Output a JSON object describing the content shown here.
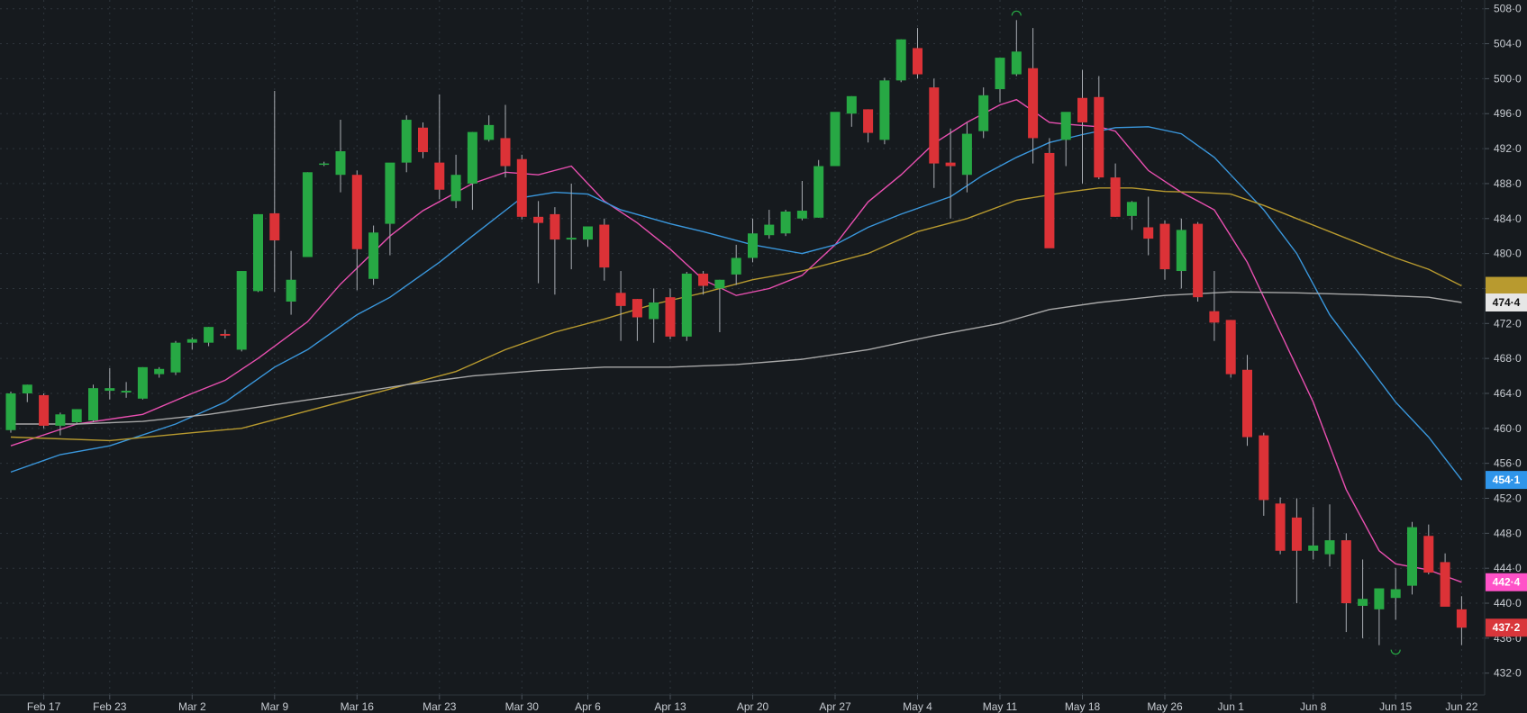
{
  "colors": {
    "background": "#161a1e",
    "grid": "#2e353c",
    "up": "#27a844",
    "down": "#dc3237",
    "wick": "#a9adb3",
    "ma_fast": "#e84fb0",
    "ma_mid": "#3a97dc",
    "ma_slow": "#b89a2f",
    "ma_long": "#a8a8a8",
    "text": "#c8ccd2"
  },
  "chart_data": {
    "type": "candlestick",
    "ylim": [
      429.5,
      509.0
    ],
    "y_ticks": [
      "432·0",
      "436·0",
      "440·0",
      "444·0",
      "448·0",
      "452·0",
      "456·0",
      "460·0",
      "464·0",
      "468·0",
      "472·0",
      "476·0",
      "480·0",
      "484·0",
      "488·0",
      "492·0",
      "496·0",
      "500·0",
      "504·0",
      "508·0"
    ],
    "x_ticks": [
      {
        "label": "Feb 17",
        "index": 2
      },
      {
        "label": "Feb 23",
        "index": 6
      },
      {
        "label": "Mar 2",
        "index": 11
      },
      {
        "label": "Mar 9",
        "index": 16
      },
      {
        "label": "Mar 16",
        "index": 21
      },
      {
        "label": "Mar 23",
        "index": 26
      },
      {
        "label": "Mar 30",
        "index": 31
      },
      {
        "label": "Apr 6",
        "index": 35
      },
      {
        "label": "Apr 13",
        "index": 40
      },
      {
        "label": "Apr 20",
        "index": 45
      },
      {
        "label": "Apr 27",
        "index": 50
      },
      {
        "label": "May 4",
        "index": 55
      },
      {
        "label": "May 11",
        "index": 60
      },
      {
        "label": "May 18",
        "index": 65
      },
      {
        "label": "May 26",
        "index": 70
      },
      {
        "label": "Jun 1",
        "index": 74
      },
      {
        "label": "Jun 8",
        "index": 79
      },
      {
        "label": "Jun 15",
        "index": 84
      },
      {
        "label": "Jun 22",
        "index": 88
      }
    ],
    "candles": [
      [
        459.8,
        464.2,
        459.5,
        464.0
      ],
      [
        464.0,
        465.0,
        463.0,
        465.0
      ],
      [
        463.8,
        464.0,
        460.0,
        460.3
      ],
      [
        460.3,
        461.8,
        459.2,
        461.6
      ],
      [
        460.7,
        462.2,
        460.5,
        462.2
      ],
      [
        460.9,
        465.0,
        460.7,
        464.6
      ],
      [
        464.3,
        466.9,
        463.3,
        464.6
      ],
      [
        464.1,
        465.3,
        463.5,
        464.3
      ],
      [
        463.4,
        467.0,
        463.3,
        467.0
      ],
      [
        466.2,
        467.0,
        465.8,
        466.8
      ],
      [
        466.4,
        470.0,
        466.1,
        469.8
      ],
      [
        469.8,
        470.4,
        469.0,
        470.2
      ],
      [
        469.8,
        471.6,
        469.4,
        471.6
      ],
      [
        470.8,
        471.3,
        470.3,
        470.6
      ],
      [
        469.0,
        478.0,
        468.8,
        478.0
      ],
      [
        475.7,
        484.5,
        475.6,
        484.5
      ],
      [
        484.6,
        498.6,
        475.6,
        481.5
      ],
      [
        474.5,
        480.3,
        473.0,
        477.0
      ],
      [
        479.6,
        489.3,
        479.6,
        489.3
      ],
      [
        490.3,
        490.5,
        490.0,
        490.3
      ],
      [
        489.0,
        495.3,
        487.0,
        491.7
      ],
      [
        489.0,
        489.5,
        475.8,
        480.5
      ],
      [
        477.1,
        483.2,
        476.4,
        482.4
      ],
      [
        483.4,
        490.3,
        479.8,
        490.4
      ],
      [
        490.4,
        495.8,
        489.3,
        495.3
      ],
      [
        494.4,
        495.0,
        490.9,
        491.6
      ],
      [
        490.4,
        498.2,
        486.2,
        487.3
      ],
      [
        486.0,
        491.3,
        485.2,
        489.0
      ],
      [
        488.0,
        493.9,
        485.0,
        493.9
      ],
      [
        493.0,
        495.8,
        492.8,
        494.7
      ],
      [
        493.2,
        497.0,
        488.7,
        490.0
      ],
      [
        490.8,
        491.3,
        483.9,
        484.2
      ],
      [
        484.2,
        486.0,
        476.6,
        483.5
      ],
      [
        484.5,
        485.3,
        475.3,
        481.6
      ],
      [
        481.6,
        488.0,
        478.2,
        481.8
      ],
      [
        481.6,
        483.0,
        480.8,
        483.1
      ],
      [
        483.3,
        484.0,
        476.9,
        478.4
      ],
      [
        475.5,
        478.0,
        470.0,
        474.0
      ],
      [
        474.8,
        474.8,
        470.0,
        472.7
      ],
      [
        472.5,
        476.0,
        469.8,
        474.4
      ],
      [
        475.0,
        476.0,
        470.2,
        470.5
      ],
      [
        470.5,
        477.9,
        470.0,
        477.7
      ],
      [
        477.7,
        478.0,
        475.3,
        476.3
      ],
      [
        476.0,
        477.0,
        471.0,
        477.0
      ],
      [
        477.6,
        481.0,
        476.4,
        479.5
      ],
      [
        479.5,
        484.0,
        479.0,
        482.3
      ],
      [
        482.1,
        485.0,
        481.7,
        483.3
      ],
      [
        482.3,
        485.0,
        482.0,
        484.8
      ],
      [
        484.0,
        488.3,
        483.8,
        484.9
      ],
      [
        484.1,
        490.7,
        484.1,
        490.0
      ],
      [
        490.0,
        496.0,
        490.0,
        496.2
      ],
      [
        496.0,
        498.0,
        494.5,
        498.0
      ],
      [
        496.5,
        496.5,
        492.7,
        493.8
      ],
      [
        493.0,
        500.1,
        492.5,
        499.8
      ],
      [
        499.8,
        504.5,
        499.6,
        504.5
      ],
      [
        503.5,
        505.8,
        500.0,
        500.5
      ],
      [
        499.0,
        500.0,
        487.5,
        490.3
      ],
      [
        490.4,
        494.3,
        484.0,
        490.0
      ],
      [
        489.0,
        495.0,
        487.0,
        493.7
      ],
      [
        494.0,
        499.0,
        493.2,
        498.1
      ],
      [
        498.8,
        502.3,
        497.3,
        502.4
      ],
      [
        500.5,
        506.7,
        500.3,
        503.1
      ],
      [
        501.2,
        505.8,
        490.3,
        493.2
      ],
      [
        491.5,
        493.2,
        481.0,
        480.6
      ],
      [
        493.0,
        496.0,
        490.0,
        496.2
      ],
      [
        497.8,
        501.0,
        488.0,
        495.0
      ],
      [
        497.9,
        500.3,
        488.5,
        488.7
      ],
      [
        488.7,
        490.3,
        484.2,
        484.2
      ],
      [
        484.3,
        486.0,
        482.7,
        485.9
      ],
      [
        483.0,
        486.5,
        479.8,
        481.7
      ],
      [
        483.4,
        483.8,
        477.0,
        478.2
      ],
      [
        478.0,
        484.0,
        476.0,
        482.7
      ],
      [
        483.4,
        483.6,
        474.5,
        475.0
      ],
      [
        473.4,
        478.0,
        470.0,
        472.1
      ],
      [
        472.4,
        472.4,
        465.8,
        466.2
      ],
      [
        466.7,
        468.4,
        458.0,
        459.0
      ],
      [
        459.2,
        459.5,
        450.0,
        451.8
      ],
      [
        451.4,
        452.1,
        445.6,
        446.0
      ],
      [
        449.8,
        452.0,
        440.0,
        446.0
      ],
      [
        446.0,
        451.0,
        445.0,
        446.6
      ],
      [
        445.6,
        451.3,
        444.2,
        447.2
      ],
      [
        447.2,
        448.0,
        436.7,
        440.0
      ],
      [
        439.7,
        445.0,
        436.0,
        440.5
      ],
      [
        439.3,
        441.3,
        435.2,
        441.7
      ],
      [
        440.6,
        444.0,
        438.1,
        441.6
      ],
      [
        442.0,
        449.3,
        441.0,
        448.7
      ],
      [
        447.7,
        449.0,
        443.3,
        443.5
      ],
      [
        444.7,
        445.7,
        439.8,
        439.6
      ],
      [
        439.3,
        440.8,
        435.2,
        437.2
      ]
    ],
    "series": [
      {
        "key": "ma_fast",
        "values": [
          [
            0,
            458.0
          ],
          [
            4,
            460.5
          ],
          [
            8,
            461.6
          ],
          [
            11,
            464.0
          ],
          [
            13,
            465.5
          ],
          [
            15,
            468.0
          ],
          [
            18,
            472.2
          ],
          [
            20,
            476.5
          ],
          [
            23,
            482.0
          ],
          [
            25,
            484.9
          ],
          [
            28,
            488.0
          ],
          [
            30,
            489.3
          ],
          [
            32,
            489.0
          ],
          [
            34,
            490.0
          ],
          [
            36,
            486.0
          ],
          [
            38,
            483.5
          ],
          [
            40,
            480.5
          ],
          [
            42,
            477.0
          ],
          [
            44,
            475.2
          ],
          [
            46,
            476.0
          ],
          [
            48,
            477.5
          ],
          [
            50,
            481.0
          ],
          [
            52,
            485.9
          ],
          [
            54,
            489.0
          ],
          [
            56,
            492.6
          ],
          [
            58,
            495.0
          ],
          [
            60,
            497.0
          ],
          [
            61,
            497.6
          ],
          [
            63,
            495.0
          ],
          [
            64,
            494.8
          ],
          [
            66,
            494.5
          ],
          [
            67,
            494.0
          ],
          [
            69,
            489.5
          ],
          [
            71,
            487.0
          ],
          [
            72,
            486.0
          ],
          [
            73,
            485.0
          ],
          [
            75,
            479.0
          ],
          [
            77,
            471.0
          ],
          [
            79,
            463.0
          ],
          [
            81,
            453.0
          ],
          [
            83,
            446.0
          ],
          [
            84,
            444.5
          ],
          [
            86,
            443.8
          ],
          [
            88,
            442.4
          ]
        ]
      },
      {
        "key": "ma_mid",
        "values": [
          [
            0,
            455.0
          ],
          [
            3,
            457.0
          ],
          [
            6,
            458.0
          ],
          [
            10,
            460.5
          ],
          [
            13,
            463.0
          ],
          [
            16,
            467.0
          ],
          [
            18,
            469.0
          ],
          [
            21,
            473.0
          ],
          [
            23,
            475.0
          ],
          [
            26,
            479.0
          ],
          [
            28,
            482.0
          ],
          [
            31,
            486.4
          ],
          [
            33,
            487.0
          ],
          [
            35,
            486.8
          ],
          [
            37,
            485.0
          ],
          [
            40,
            483.4
          ],
          [
            42,
            482.5
          ],
          [
            45,
            481.0
          ],
          [
            48,
            480.0
          ],
          [
            50,
            481.0
          ],
          [
            52,
            483.0
          ],
          [
            54,
            484.5
          ],
          [
            57,
            486.5
          ],
          [
            59,
            489.0
          ],
          [
            61,
            491.0
          ],
          [
            63,
            492.7
          ],
          [
            65,
            493.6
          ],
          [
            67,
            494.4
          ],
          [
            69,
            494.5
          ],
          [
            71,
            493.7
          ],
          [
            73,
            491.0
          ],
          [
            74,
            489.0
          ],
          [
            76,
            485.0
          ],
          [
            78,
            480.0
          ],
          [
            80,
            473.0
          ],
          [
            82,
            468.0
          ],
          [
            84,
            463.0
          ],
          [
            86,
            459.0
          ],
          [
            88,
            454.1
          ]
        ]
      },
      {
        "key": "ma_slow",
        "values": [
          [
            0,
            459.0
          ],
          [
            6,
            458.6
          ],
          [
            11,
            459.5
          ],
          [
            14,
            460.0
          ],
          [
            17,
            461.5
          ],
          [
            21,
            463.5
          ],
          [
            24,
            465.0
          ],
          [
            27,
            466.5
          ],
          [
            30,
            469.0
          ],
          [
            33,
            471.0
          ],
          [
            36,
            472.5
          ],
          [
            39,
            474.2
          ],
          [
            42,
            475.5
          ],
          [
            45,
            477.0
          ],
          [
            48,
            478.0
          ],
          [
            50,
            479.0
          ],
          [
            52,
            480.0
          ],
          [
            55,
            482.5
          ],
          [
            58,
            484.0
          ],
          [
            61,
            486.1
          ],
          [
            64,
            487.0
          ],
          [
            66,
            487.5
          ],
          [
            68,
            487.5
          ],
          [
            70,
            487.1
          ],
          [
            72,
            487.0
          ],
          [
            74,
            486.8
          ],
          [
            76,
            485.5
          ],
          [
            78,
            484.0
          ],
          [
            80,
            482.5
          ],
          [
            82,
            481.0
          ],
          [
            84,
            479.5
          ],
          [
            86,
            478.2
          ],
          [
            88,
            476.3
          ]
        ]
      },
      {
        "key": "ma_long",
        "values": [
          [
            0,
            460.5
          ],
          [
            4,
            460.5
          ],
          [
            8,
            460.8
          ],
          [
            12,
            461.6
          ],
          [
            16,
            462.7
          ],
          [
            20,
            463.8
          ],
          [
            24,
            465.0
          ],
          [
            28,
            466.0
          ],
          [
            32,
            466.6
          ],
          [
            36,
            467.0
          ],
          [
            40,
            467.0
          ],
          [
            44,
            467.3
          ],
          [
            48,
            467.9
          ],
          [
            52,
            469.0
          ],
          [
            56,
            470.6
          ],
          [
            60,
            472.0
          ],
          [
            63,
            473.6
          ],
          [
            66,
            474.4
          ],
          [
            70,
            475.2
          ],
          [
            74,
            475.6
          ],
          [
            78,
            475.5
          ],
          [
            82,
            475.3
          ],
          [
            86,
            475.0
          ],
          [
            88,
            474.4
          ]
        ]
      }
    ],
    "price_badges": [
      {
        "label": "474·4",
        "value": 474.4,
        "bg": "#e6e6e6",
        "fg": "#111111"
      },
      {
        "label": "454·1",
        "value": 454.1,
        "bg": "#2f95ea",
        "fg": "#ffffff"
      },
      {
        "label": "442·4",
        "value": 442.4,
        "bg": "#ff52c8",
        "fg": "#ffffff"
      },
      {
        "label": "437·2",
        "value": 437.2,
        "bg": "#d9363b",
        "fg": "#ffffff"
      }
    ],
    "slow_ma_marker": 476.3,
    "extremes": [
      {
        "kind": "high",
        "index": 61,
        "value": 506.7
      },
      {
        "kind": "low",
        "index": 84,
        "value": 435.2
      }
    ]
  }
}
